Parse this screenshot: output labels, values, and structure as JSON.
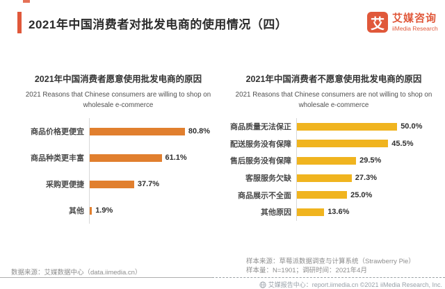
{
  "header": {
    "title": "2021年中国消费者对批发电商的使用情况（四）",
    "logo": {
      "glyph": "艾",
      "name_cn": "艾媒咨询",
      "name_en": "iiMedia Research"
    }
  },
  "brand_colors": {
    "accent_orange": "#e0583a",
    "bar_orange": "#e17f2e",
    "bar_yellow": "#f0b41f"
  },
  "chart_data": [
    {
      "type": "bar",
      "orientation": "horizontal",
      "title": "2021年中国消费者愿意使用批发电商的原因",
      "subtitle": "2021 Reasons that Chinese consumers are willing to shop on wholesale e-commerce",
      "categories": [
        "商品价格更便宜",
        "商品种类更丰富",
        "采购更便捷",
        "其他"
      ],
      "values": [
        80.8,
        61.1,
        37.7,
        1.9
      ],
      "value_labels": [
        "80.8%",
        "61.1%",
        "37.7%",
        "1.9%"
      ],
      "bar_color": "#e17f2e",
      "xlim": [
        0,
        85
      ],
      "grid": false,
      "legend": "none",
      "value_label_position": "end-of-bar"
    },
    {
      "type": "bar",
      "orientation": "horizontal",
      "title": "2021年中国消费者不愿意使用批发电商的原因",
      "subtitle": "2021 Reasons that Chinese consumers are not willing to shop on wholesale e-commerce",
      "categories": [
        "商品质量无法保正",
        "配送服务没有保障",
        "售后服务没有保障",
        "客服服务欠缺",
        "商品展示不全面",
        "其他原因"
      ],
      "values": [
        50.0,
        45.5,
        29.5,
        27.3,
        25.0,
        13.6
      ],
      "value_labels": [
        "50.0%",
        "45.5%",
        "29.5%",
        "27.3%",
        "25.0%",
        "13.6%"
      ],
      "bar_color": "#f0b41f",
      "xlim": [
        0,
        52
      ],
      "grid": false,
      "legend": "none",
      "value_label_position": "end-of-bar"
    }
  ],
  "footnotes": {
    "data_source": "数据来源：艾媒数据中心（data.iimedia.cn）",
    "sample_source": "样本来源：草莓派数据调查与计算系统（Strawberry Pie）",
    "sample_info": "样本量：N=1901；调研时间：2021年4月"
  },
  "watermark": {
    "text": "艾媒报告中心：report.iimedia.cn ©2021 iiMedia Research, Inc."
  }
}
